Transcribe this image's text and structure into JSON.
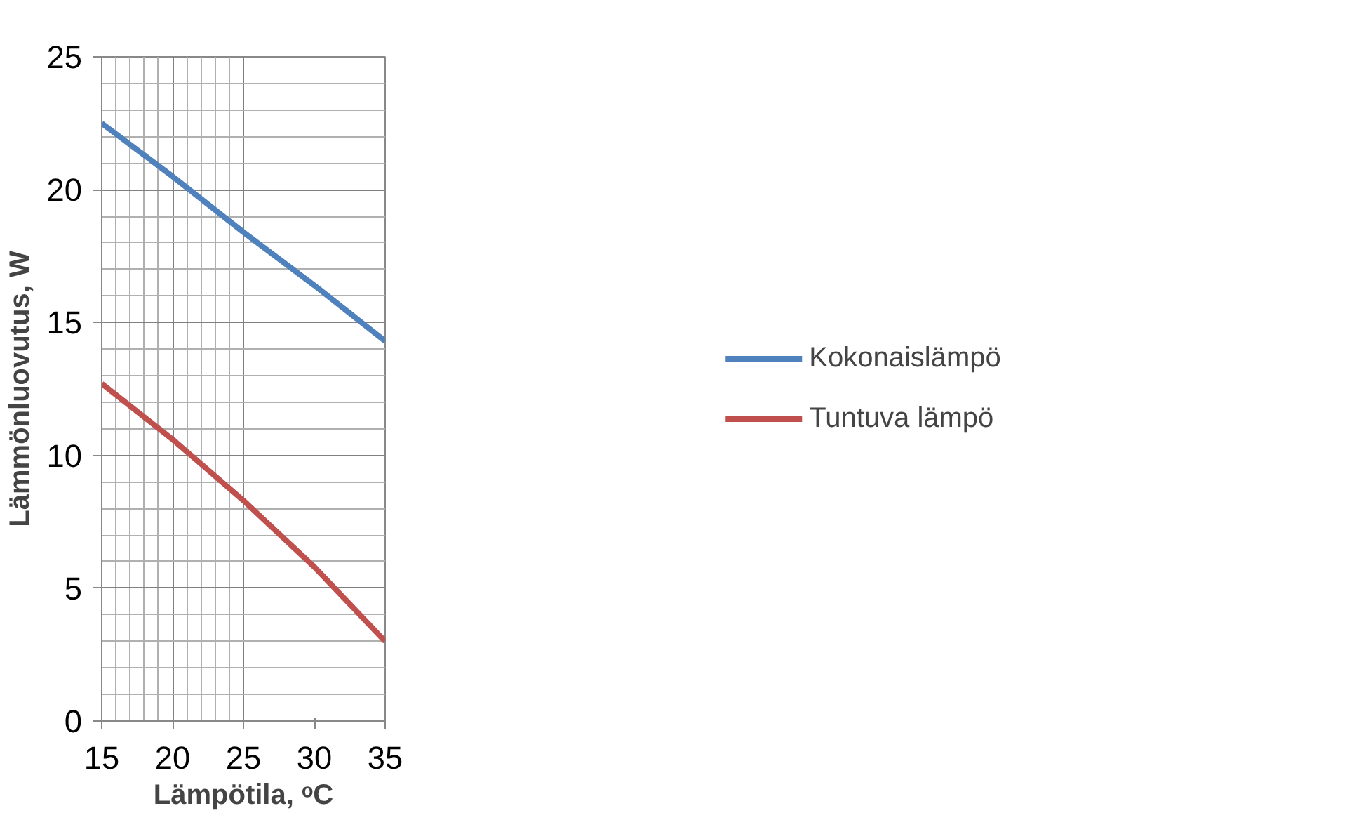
{
  "chart_data": {
    "type": "line",
    "xlabel": "Lämpötila, ᵒC",
    "ylabel": "Lämmönluovutus, W",
    "x": [
      15,
      20,
      25,
      30,
      35
    ],
    "series": [
      {
        "name": "Kokonaislämpö",
        "color": "#4f81bd",
        "values": [
          22.5,
          20.5,
          18.4,
          16.4,
          14.3
        ]
      },
      {
        "name": "Tuntuva lämpö",
        "color": "#c0504d",
        "values": [
          12.7,
          10.6,
          8.3,
          5.8,
          3.0
        ]
      }
    ],
    "xlim": [
      15,
      35
    ],
    "ylim": [
      0,
      25
    ],
    "xticks": [
      15,
      20,
      25,
      30,
      35
    ],
    "yticks": [
      0,
      5,
      10,
      15,
      20,
      25
    ],
    "grid": true,
    "legend": "right",
    "marker": "none",
    "line_style": "solid"
  }
}
